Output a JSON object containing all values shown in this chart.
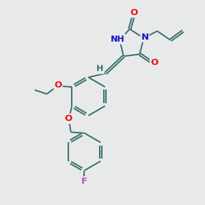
{
  "bg_color": "#e8eaea",
  "bond_color": "#3d7070",
  "bond_width": 1.5,
  "dbo": 0.06,
  "atom_colors": {
    "O": "#ee1111",
    "N": "#1111cc",
    "F": "#cc44cc",
    "H": "#3d7070",
    "C": "#3d7070"
  },
  "fs": 9.5
}
